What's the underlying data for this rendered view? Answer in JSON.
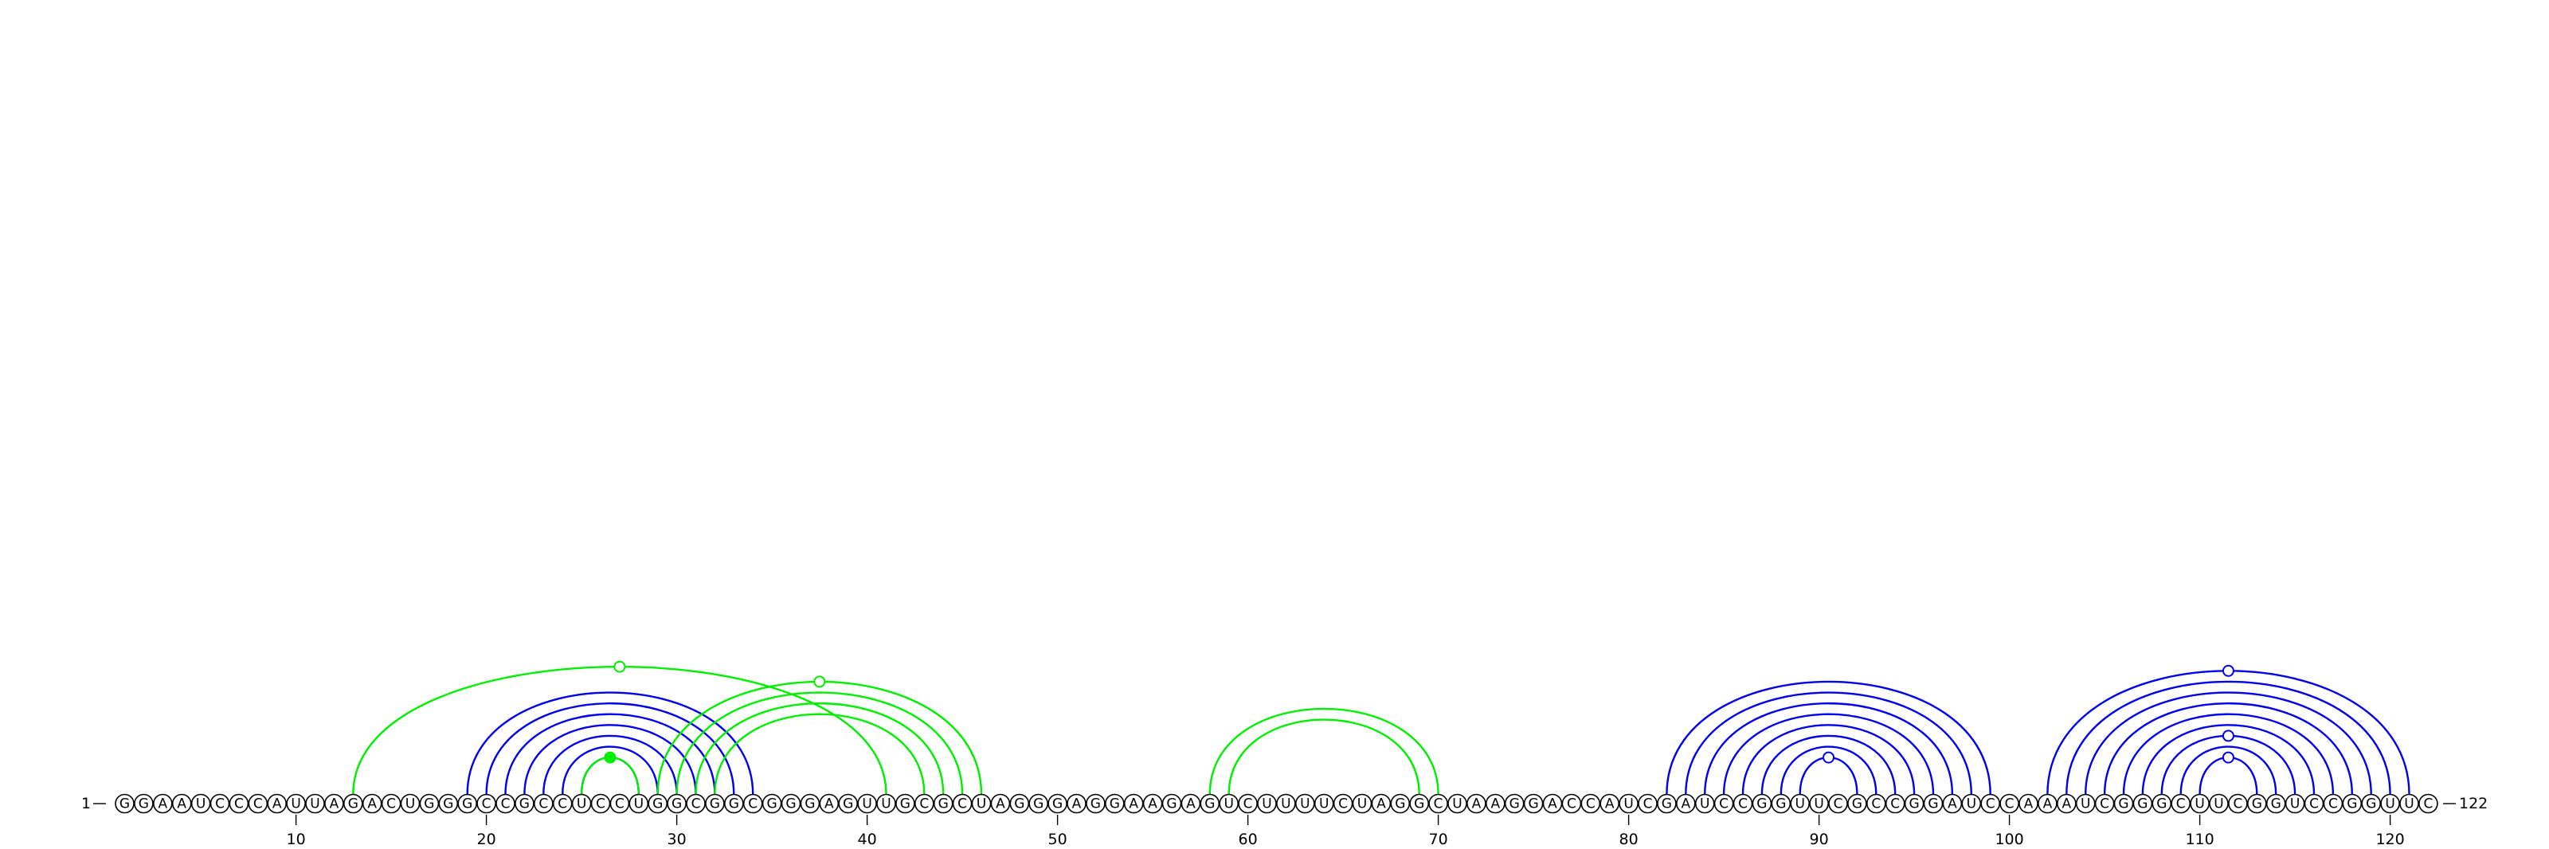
{
  "sequence": "GGAAUCCCAUUAGACUGGGCCGCCUCCUGGCGGCGGGAGUUGCGCUAGGGAGGAAGAGUCUUUUCUAGGCUAAGGACCAUCGAUCCGGUUCGCCGGAUCCAAAUCGGGCUUCGGUCCGGUUC",
  "start_label": "1",
  "end_label": "122",
  "ticks": [
    10,
    20,
    30,
    40,
    50,
    60,
    70,
    80,
    90,
    100,
    110,
    120
  ],
  "colors": {
    "primary": "#0000ee",
    "alternate": "#00ee00"
  },
  "arcs_primary": [
    [
      19,
      34
    ],
    [
      20,
      33
    ],
    [
      21,
      32
    ],
    [
      22,
      31
    ],
    [
      23,
      30
    ],
    [
      24,
      29
    ],
    [
      25,
      28
    ],
    [
      82,
      99
    ],
    [
      83,
      98
    ],
    [
      84,
      97
    ],
    [
      85,
      96
    ],
    [
      86,
      95
    ],
    [
      87,
      94
    ],
    [
      88,
      93
    ],
    [
      89,
      92
    ],
    [
      102,
      121
    ],
    [
      103,
      120
    ],
    [
      104,
      119
    ],
    [
      105,
      118
    ],
    [
      106,
      117
    ],
    [
      107,
      116
    ],
    [
      108,
      115
    ],
    [
      109,
      114
    ],
    [
      110,
      113
    ]
  ],
  "arcs_alternate": [
    [
      13,
      41
    ],
    [
      25,
      28
    ],
    [
      29,
      46
    ],
    [
      30,
      45
    ],
    [
      31,
      44
    ],
    [
      32,
      43
    ],
    [
      58,
      70
    ],
    [
      59,
      69
    ]
  ],
  "arc_markers": [
    {
      "pair": [
        13,
        41
      ],
      "style": "open",
      "color": "alternate"
    },
    {
      "pair": [
        29,
        46
      ],
      "style": "open",
      "color": "alternate"
    },
    {
      "pair": [
        25,
        28
      ],
      "style": "filled",
      "color": "alternate"
    },
    {
      "pair": [
        89,
        92
      ],
      "style": "open",
      "color": "primary"
    },
    {
      "pair": [
        102,
        121
      ],
      "style": "open",
      "color": "primary"
    },
    {
      "pair": [
        108,
        115
      ],
      "style": "open",
      "color": "primary"
    },
    {
      "pair": [
        110,
        113
      ],
      "style": "open",
      "color": "primary"
    }
  ]
}
